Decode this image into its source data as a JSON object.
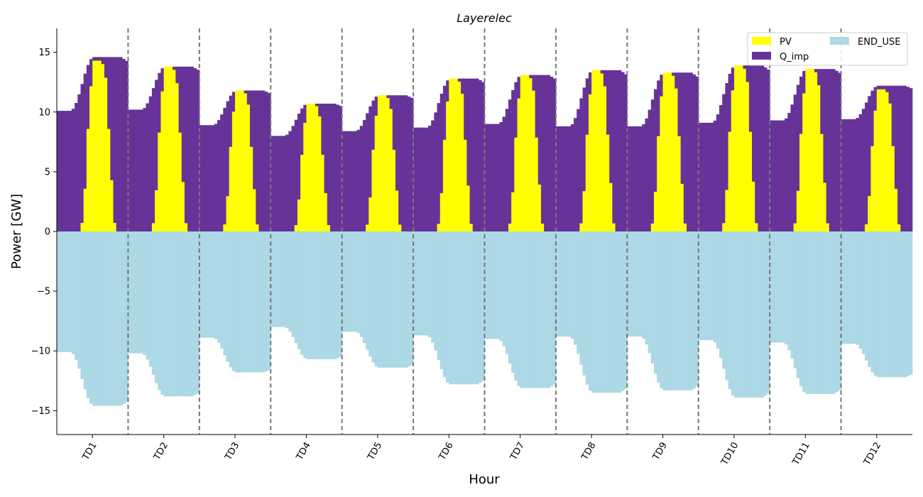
{
  "chart_data": {
    "type": "bar",
    "title": "Layerelec",
    "xlabel": "Hour",
    "ylabel": "Power [GW]",
    "ylim": [
      -17,
      17
    ],
    "yticks": [
      -15,
      -10,
      -5,
      0,
      5,
      10,
      15
    ],
    "categories": [
      "TD1",
      "TD2",
      "TD3",
      "TD4",
      "TD5",
      "TD6",
      "TD7",
      "TD8",
      "TD9",
      "TD10",
      "TD11",
      "TD12"
    ],
    "hours_per_day": 24,
    "stacked": true,
    "legend_position": "top-right",
    "legend_columns": 2,
    "day_separators": true,
    "series": [
      {
        "name": "PV",
        "color": "#ffff00",
        "peaks": [
          14.3,
          13.8,
          11.8,
          10.7,
          11.4,
          12.8,
          13.1,
          13.5,
          13.3,
          13.9,
          13.6,
          11.9
        ],
        "profile": [
          0,
          0,
          0,
          0,
          0,
          0,
          0,
          0,
          0.05,
          0.25,
          0.6,
          0.85,
          1,
          1,
          1,
          0.98,
          0.9,
          0.6,
          0.3,
          0.05,
          0,
          0,
          0,
          0
        ]
      },
      {
        "name": "Q_imp",
        "color": "#663399",
        "daily_min": [
          10.1,
          10.2,
          8.9,
          8.0,
          8.4,
          8.7,
          9.0,
          8.8,
          8.8,
          9.1,
          9.3,
          9.4
        ],
        "daily_max": [
          14.6,
          13.8,
          11.8,
          10.7,
          11.4,
          12.8,
          13.1,
          13.5,
          13.3,
          13.9,
          13.6,
          12.2
        ]
      },
      {
        "name": "END_USE",
        "color": "#add8e6",
        "daily_min": [
          -14.6,
          -13.8,
          -11.8,
          -10.7,
          -11.4,
          -12.8,
          -13.1,
          -13.5,
          -13.3,
          -13.9,
          -13.6,
          -12.2
        ],
        "daily_max": [
          -10.1,
          -10.2,
          -8.9,
          -8.0,
          -8.4,
          -8.7,
          -9.0,
          -8.8,
          -8.8,
          -9.1,
          -9.3,
          -9.4
        ]
      }
    ]
  }
}
